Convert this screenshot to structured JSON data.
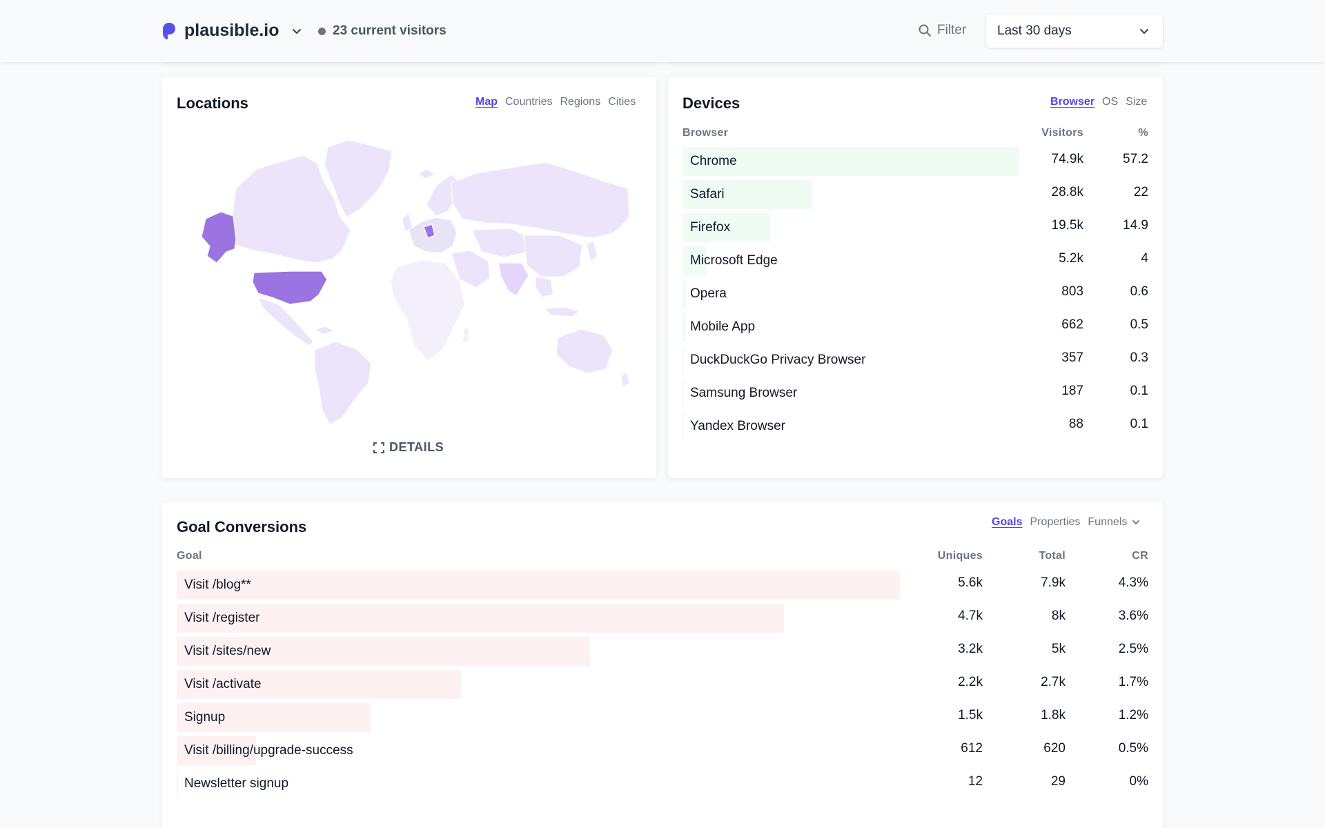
{
  "header": {
    "site_name": "plausible.io",
    "current_visitors": "23 current visitors",
    "filter_label": "Filter",
    "period_label": "Last 30 days"
  },
  "colors": {
    "accent": "#4f46e5",
    "device_bar": "#effcf4",
    "goal_bar": "#fef1f1",
    "map_base": "#ebe4fb",
    "map_highlight": "#9b74e2"
  },
  "locations": {
    "title": "Locations",
    "tabs": [
      "Map",
      "Countries",
      "Regions",
      "Cities"
    ],
    "active_tab": "Map",
    "details_label": "DETAILS"
  },
  "devices": {
    "title": "Devices",
    "tabs": [
      "Browser",
      "OS",
      "Size"
    ],
    "active_tab": "Browser",
    "columns": {
      "name": "Browser",
      "visitors": "Visitors",
      "percent": "%"
    },
    "rows": [
      {
        "name": "Chrome",
        "visitors": "74.9k",
        "percent": "57.2"
      },
      {
        "name": "Safari",
        "visitors": "28.8k",
        "percent": "22"
      },
      {
        "name": "Firefox",
        "visitors": "19.5k",
        "percent": "14.9"
      },
      {
        "name": "Microsoft Edge",
        "visitors": "5.2k",
        "percent": "4"
      },
      {
        "name": "Opera",
        "visitors": "803",
        "percent": "0.6"
      },
      {
        "name": "Mobile App",
        "visitors": "662",
        "percent": "0.5"
      },
      {
        "name": "DuckDuckGo Privacy Browser",
        "visitors": "357",
        "percent": "0.3"
      },
      {
        "name": "Samsung Browser",
        "visitors": "187",
        "percent": "0.1"
      },
      {
        "name": "Yandex Browser",
        "visitors": "88",
        "percent": "0.1"
      }
    ]
  },
  "goals": {
    "title": "Goal Conversions",
    "tabs": [
      "Goals",
      "Properties",
      "Funnels"
    ],
    "active_tab": "Goals",
    "columns": {
      "name": "Goal",
      "uniques": "Uniques",
      "total": "Total",
      "cr": "CR"
    },
    "rows": [
      {
        "name": "Visit /blog**",
        "uniques": "5.6k",
        "total": "7.9k",
        "cr": "4.3%"
      },
      {
        "name": "Visit /register",
        "uniques": "4.7k",
        "total": "8k",
        "cr": "3.6%"
      },
      {
        "name": "Visit /sites/new",
        "uniques": "3.2k",
        "total": "5k",
        "cr": "2.5%"
      },
      {
        "name": "Visit /activate",
        "uniques": "2.2k",
        "total": "2.7k",
        "cr": "1.7%"
      },
      {
        "name": "Signup",
        "uniques": "1.5k",
        "total": "1.8k",
        "cr": "1.2%"
      },
      {
        "name": "Visit /billing/upgrade-success",
        "uniques": "612",
        "total": "620",
        "cr": "0.5%"
      },
      {
        "name": "Newsletter signup",
        "uniques": "12",
        "total": "29",
        "cr": "0%"
      }
    ]
  }
}
